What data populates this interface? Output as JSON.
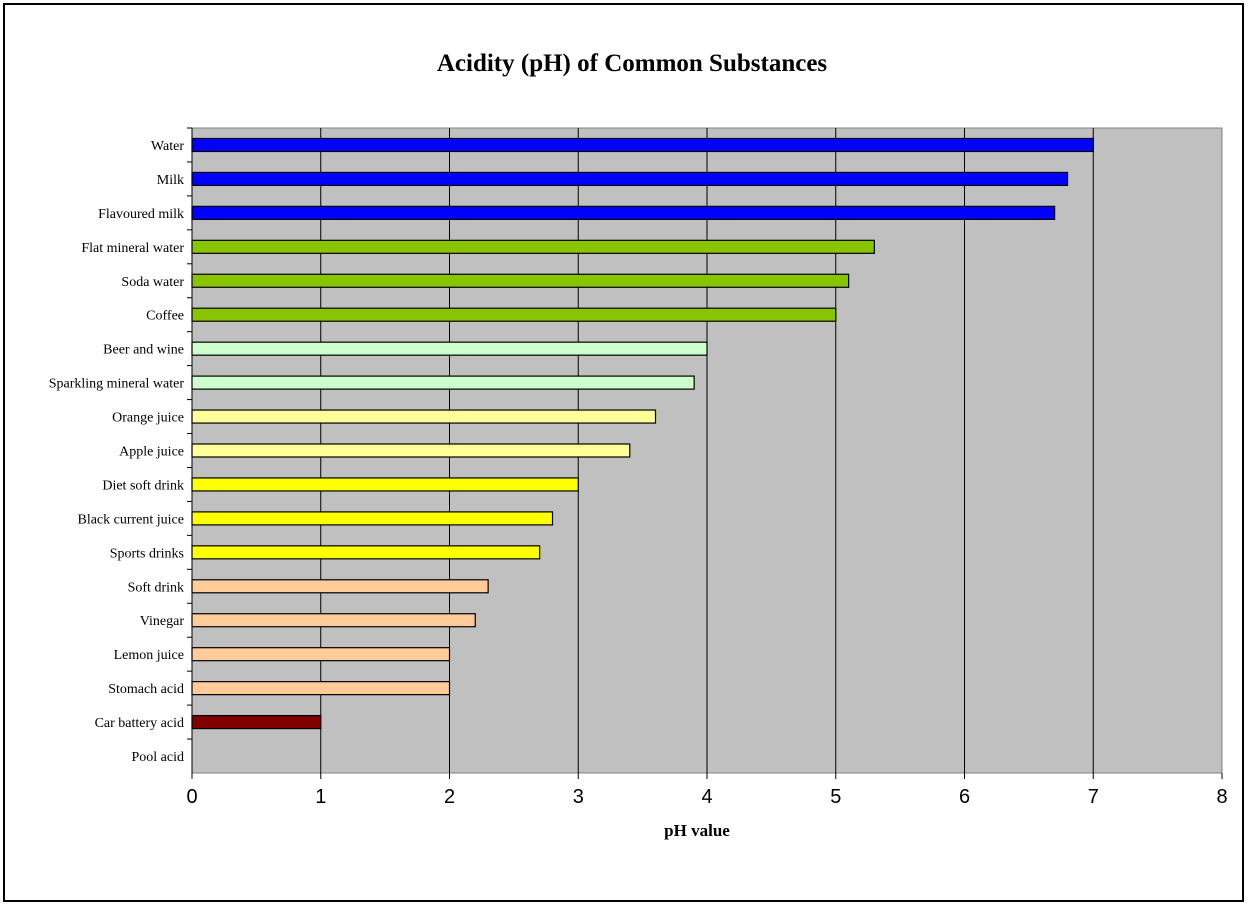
{
  "chart_data": {
    "type": "bar",
    "orientation": "horizontal",
    "title": "Acidity (pH) of Common Substances",
    "xlabel": "pH value",
    "ylabel": "",
    "xlim": [
      0,
      8
    ],
    "xticks": [
      "0",
      "1",
      "2",
      "3",
      "4",
      "5",
      "6",
      "7",
      "8"
    ],
    "grid": "vertical",
    "legend": "none",
    "plot_background": "#c0c0c0",
    "categories": [
      "Water",
      "Milk",
      "Flavoured milk",
      "Flat mineral water",
      "Soda water",
      "Coffee",
      "Beer and wine",
      "Sparkling mineral water",
      "Orange juice",
      "Apple juice",
      "Diet soft drink",
      "Black current juice",
      "Sports drinks",
      "Soft drink",
      "Vinegar",
      "Lemon juice",
      "Stomach acid",
      "Car battery acid",
      "Pool acid"
    ],
    "values": [
      7.0,
      6.8,
      6.7,
      5.3,
      5.1,
      5.0,
      4.0,
      3.9,
      3.6,
      3.4,
      3.0,
      2.8,
      2.7,
      2.3,
      2.2,
      2.0,
      2.0,
      1.0,
      0.0
    ],
    "colors": [
      "#0000ff",
      "#0000ff",
      "#0000ff",
      "#88c400",
      "#88c400",
      "#88c400",
      "#ccffcc",
      "#ccffcc",
      "#ffff99",
      "#ffff99",
      "#ffff00",
      "#ffff00",
      "#ffff00",
      "#ffcc99",
      "#ffcc99",
      "#ffcc99",
      "#ffcc99",
      "#800000",
      "#800000"
    ]
  }
}
